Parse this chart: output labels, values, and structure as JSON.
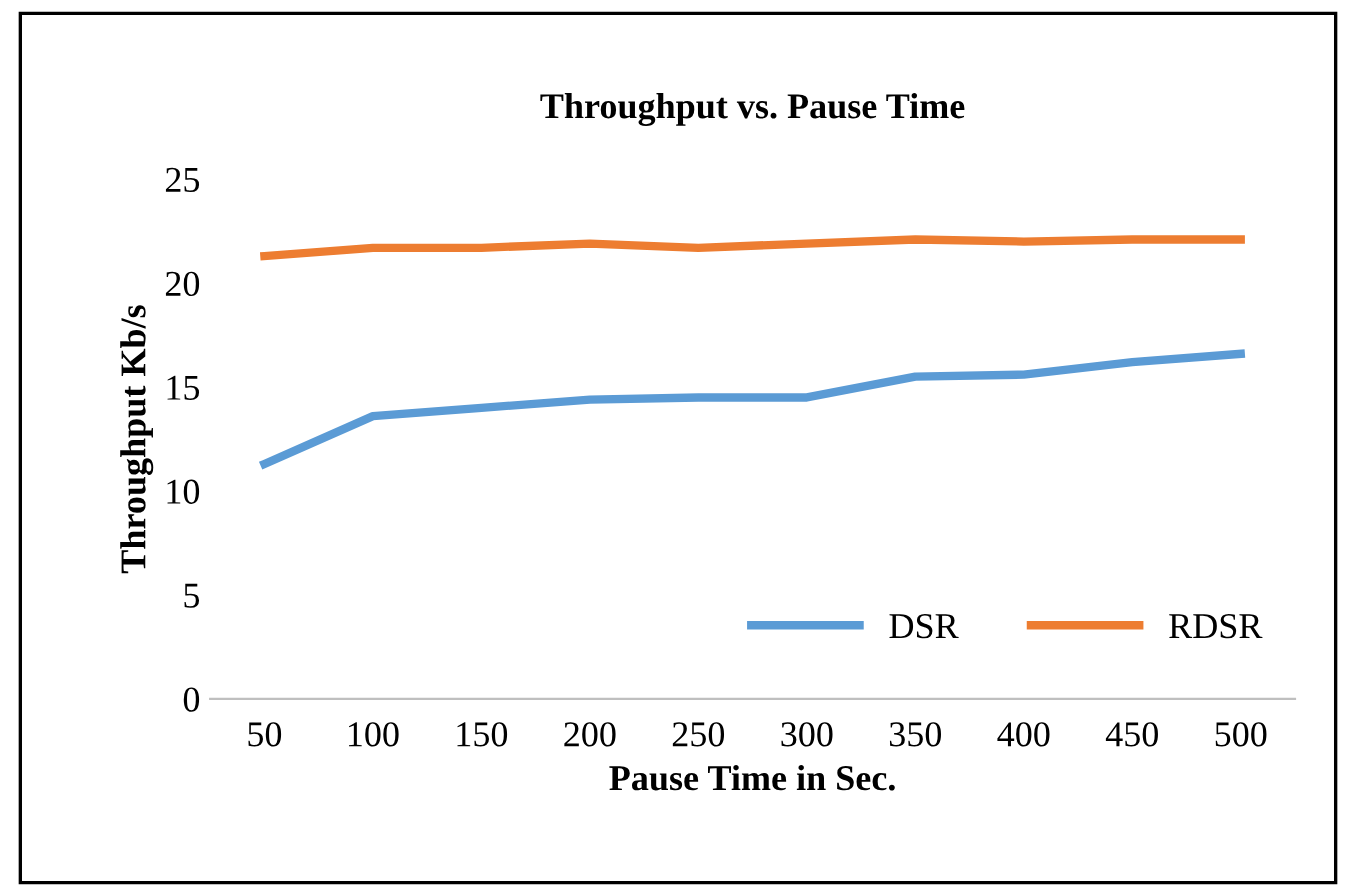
{
  "chart_data": {
    "type": "line",
    "title": "Throughput vs. Pause Time",
    "xlabel": "Pause Time in Sec.",
    "ylabel": "Throughput Kb/s",
    "categories": [
      "50",
      "100",
      "150",
      "200",
      "250",
      "300",
      "350",
      "400",
      "450",
      "500"
    ],
    "series": [
      {
        "name": "DSR",
        "color": "#5b9bd5",
        "values": [
          11.3,
          13.6,
          14.0,
          14.4,
          14.5,
          14.5,
          15.5,
          15.6,
          16.2,
          16.6
        ]
      },
      {
        "name": "RDSR",
        "color": "#ed7d31",
        "values": [
          21.3,
          21.7,
          21.7,
          21.9,
          21.7,
          21.9,
          22.1,
          22.0,
          22.1,
          22.1
        ]
      }
    ],
    "ylim": [
      0,
      25
    ],
    "yticks": [
      0,
      5,
      10,
      15,
      20,
      25
    ],
    "grid": false,
    "legend": "bottom right",
    "marker": "none",
    "line_style": "solid"
  }
}
